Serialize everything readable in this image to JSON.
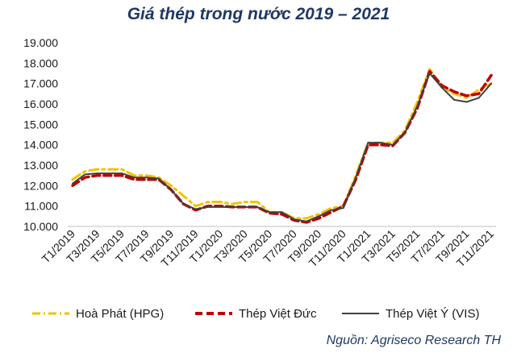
{
  "title": "Giá thép trong nước 2019 – 2021",
  "source_note": "Nguồn: Agriseco Research TH",
  "chart_data": {
    "type": "line",
    "title": "Giá thép trong nước 2019 – 2021",
    "xlabel": "",
    "ylabel": "",
    "ylim": [
      10000,
      19000
    ],
    "yticks": [
      10000,
      11000,
      12000,
      13000,
      14000,
      15000,
      16000,
      17000,
      18000,
      19000
    ],
    "ytick_labels": [
      "10.000",
      "11.000",
      "12.000",
      "13.000",
      "14.000",
      "15.000",
      "16.000",
      "17.000",
      "18.000",
      "19.000"
    ],
    "x": [
      "T1/2019",
      "T2/2019",
      "T3/2019",
      "T4/2019",
      "T5/2019",
      "T6/2019",
      "T7/2019",
      "T8/2019",
      "T9/2019",
      "T10/2019",
      "T11/2019",
      "T12/2019",
      "T1/2020",
      "T2/2020",
      "T3/2020",
      "T4/2020",
      "T5/2020",
      "T6/2020",
      "T7/2020",
      "T8/2020",
      "T9/2020",
      "T10/2020",
      "T11/2020",
      "T12/2020",
      "T1/2021",
      "T2/2021",
      "T3/2021",
      "T4/2021",
      "T5/2021",
      "T6/2021",
      "T7/2021",
      "T8/2021",
      "T9/2021",
      "T10/2021",
      "T11/2021"
    ],
    "xtick_labels": [
      "T1/2019",
      "T3/2019",
      "T5/2019",
      "T7/2019",
      "T9/2019",
      "T11/2019",
      "T1/2020",
      "T3/2020",
      "T5/2020",
      "T7/2020",
      "T9/2020",
      "T11/2020",
      "T1/2021",
      "T3/2021",
      "T5/2021",
      "T7/2021",
      "T9/2021",
      "T11/2021"
    ],
    "grid": false,
    "legend_position": "bottom",
    "series": [
      {
        "name": "Hoà Phát (HPG)",
        "color": "#f2c200",
        "dash": "dashdot",
        "values": [
          12300,
          12700,
          12800,
          12800,
          12800,
          12500,
          12500,
          12400,
          12000,
          11500,
          11000,
          11200,
          11200,
          11100,
          11200,
          11200,
          10700,
          10700,
          10400,
          10400,
          10600,
          10900,
          11000,
          12500,
          14100,
          14100,
          14100,
          14700,
          16100,
          17700,
          16800,
          16500,
          16300,
          16700,
          17000
        ]
      },
      {
        "name": "Thép Việt Đức",
        "color": "#c00000",
        "dash": "dashed",
        "values": [
          12000,
          12400,
          12500,
          12500,
          12500,
          12300,
          12300,
          12300,
          11800,
          11100,
          10800,
          11000,
          11000,
          10950,
          10950,
          10950,
          10650,
          10600,
          10300,
          10200,
          10400,
          10700,
          11000,
          12300,
          14000,
          14000,
          13950,
          14600,
          15800,
          17600,
          16900,
          16600,
          16400,
          16500,
          17400
        ]
      },
      {
        "name": "Thép Việt Ý (VIS)",
        "color": "#404040",
        "dash": "solid",
        "values": [
          12100,
          12550,
          12600,
          12600,
          12600,
          12400,
          12400,
          12350,
          11800,
          11100,
          10850,
          10950,
          10950,
          10950,
          10950,
          10950,
          10700,
          10700,
          10350,
          10250,
          10500,
          10800,
          10900,
          12400,
          14100,
          14100,
          14000,
          14600,
          15900,
          17500,
          16800,
          16200,
          16100,
          16300,
          17000
        ]
      }
    ]
  }
}
